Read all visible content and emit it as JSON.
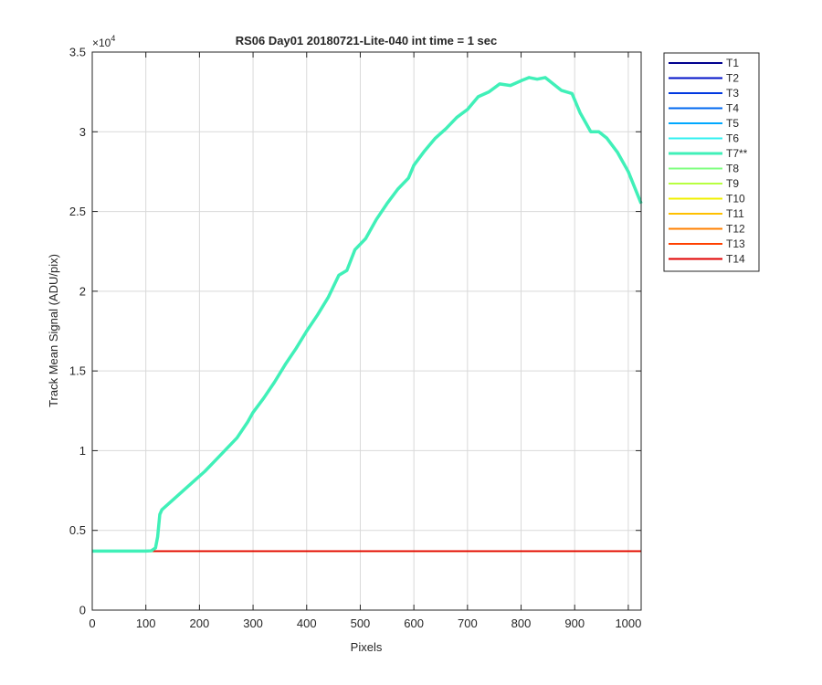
{
  "chart_data": {
    "type": "line",
    "title": "RS06 Day01 20180721-Lite-040 int time = 1 sec",
    "xlabel": "Pixels",
    "ylabel": "Track Mean Signal (ADU/pix)",
    "y_exponent_label": "×10",
    "y_exponent": "4",
    "xlim": [
      0,
      1024
    ],
    "ylim": [
      0,
      35000
    ],
    "x_ticks": [
      0,
      100,
      200,
      300,
      400,
      500,
      600,
      700,
      800,
      900,
      1000
    ],
    "x_tick_labels": [
      "0",
      "100",
      "200",
      "300",
      "400",
      "500",
      "600",
      "700",
      "800",
      "900",
      "1000"
    ],
    "y_ticks": [
      0,
      5000,
      10000,
      15000,
      20000,
      25000,
      30000,
      35000
    ],
    "y_tick_labels": [
      "0",
      "0.5",
      "1",
      "1.5",
      "2",
      "2.5",
      "3",
      "3.5"
    ],
    "grid": true,
    "legend_position": "outside-right-top",
    "baseline_value": 3700,
    "series": [
      {
        "name": "T1",
        "color": "#00008F",
        "value": 3700
      },
      {
        "name": "T2",
        "color": "#0010C8",
        "value": 3700
      },
      {
        "name": "T3",
        "color": "#0038E0",
        "value": 3700
      },
      {
        "name": "T4",
        "color": "#0068F0",
        "value": 3700
      },
      {
        "name": "T5",
        "color": "#00A8FF",
        "value": 3700
      },
      {
        "name": "T6",
        "color": "#30F0F0",
        "value": 3700
      },
      {
        "name": "T7**",
        "color": "#40F0B8",
        "highlight": true,
        "points": [
          [
            0,
            3700
          ],
          [
            100,
            3700
          ],
          [
            110,
            3720
          ],
          [
            118,
            3900
          ],
          [
            122,
            4600
          ],
          [
            126,
            6000
          ],
          [
            130,
            6300
          ],
          [
            150,
            6900
          ],
          [
            170,
            7500
          ],
          [
            190,
            8100
          ],
          [
            210,
            8700
          ],
          [
            230,
            9400
          ],
          [
            250,
            10100
          ],
          [
            270,
            10800
          ],
          [
            290,
            11800
          ],
          [
            300,
            12400
          ],
          [
            320,
            13300
          ],
          [
            340,
            14300
          ],
          [
            360,
            15400
          ],
          [
            380,
            16400
          ],
          [
            400,
            17500
          ],
          [
            420,
            18500
          ],
          [
            440,
            19600
          ],
          [
            460,
            21000
          ],
          [
            475,
            21300
          ],
          [
            490,
            22600
          ],
          [
            510,
            23300
          ],
          [
            530,
            24500
          ],
          [
            550,
            25500
          ],
          [
            570,
            26400
          ],
          [
            590,
            27100
          ],
          [
            600,
            27900
          ],
          [
            620,
            28800
          ],
          [
            640,
            29600
          ],
          [
            660,
            30200
          ],
          [
            680,
            30900
          ],
          [
            700,
            31400
          ],
          [
            720,
            32200
          ],
          [
            740,
            32500
          ],
          [
            760,
            33000
          ],
          [
            780,
            32900
          ],
          [
            800,
            33200
          ],
          [
            815,
            33400
          ],
          [
            830,
            33300
          ],
          [
            845,
            33400
          ],
          [
            860,
            33000
          ],
          [
            875,
            32600
          ],
          [
            895,
            32400
          ],
          [
            910,
            31200
          ],
          [
            930,
            30000
          ],
          [
            945,
            30000
          ],
          [
            960,
            29600
          ],
          [
            980,
            28700
          ],
          [
            1000,
            27500
          ],
          [
            1024,
            25500
          ]
        ]
      },
      {
        "name": "T8",
        "color": "#80FF80",
        "value": 3700
      },
      {
        "name": "T9",
        "color": "#B8FF40",
        "value": 3700
      },
      {
        "name": "T10",
        "color": "#F0F000",
        "value": 3700
      },
      {
        "name": "T11",
        "color": "#FFC000",
        "value": 3700
      },
      {
        "name": "T12",
        "color": "#FF8000",
        "value": 3700
      },
      {
        "name": "T13",
        "color": "#FF4000",
        "value": 3700
      },
      {
        "name": "T14",
        "color": "#E00000",
        "value": 3700
      }
    ]
  }
}
